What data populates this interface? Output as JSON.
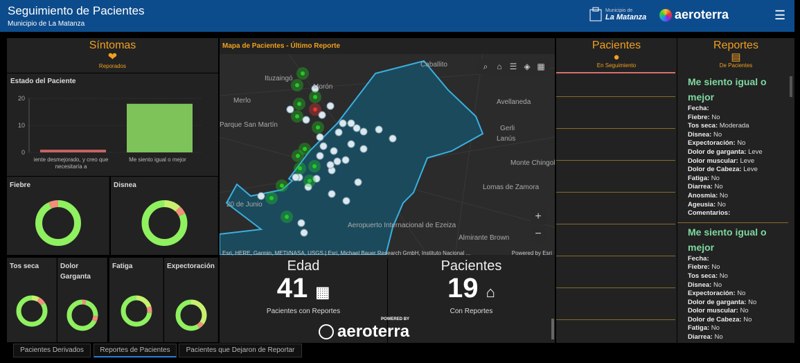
{
  "header": {
    "title": "Seguimiento de Pacientes",
    "subtitle": "Municipio de La Matanza",
    "municipio_small": "Municipio de",
    "municipio_name": "La Matanza",
    "brand": "aeroterra",
    "menu_icon": "hamburger-icon"
  },
  "sintomas": {
    "title": "Síntomas",
    "sub": "Reporados",
    "icon": "heart-alert-icon"
  },
  "estado": {
    "title": "Estado del Paciente"
  },
  "chart_data": {
    "type": "bar",
    "title": "Estado del Paciente",
    "categories": [
      "iente desmejorado, y creo que necesitaría a",
      "Me siento igual o mejor"
    ],
    "values": [
      1,
      18
    ],
    "colors": [
      "#c86464",
      "#7dc35a"
    ],
    "ylim": [
      0,
      20
    ],
    "yticks": [
      0,
      10,
      20
    ],
    "grid": true
  },
  "donuts": [
    {
      "label": "Fiebre",
      "segments": [
        {
          "v": 0.93,
          "c": "#8ff060"
        },
        {
          "v": 0.07,
          "c": "#f0907a"
        }
      ]
    },
    {
      "label": "Disnea",
      "segments": [
        {
          "v": 0.12,
          "c": "#c8f070"
        },
        {
          "v": 0.06,
          "c": "#f0907a"
        },
        {
          "v": 0.82,
          "c": "#8ff060"
        }
      ]
    },
    {
      "label": "Tos seca",
      "segments": [
        {
          "v": 0.08,
          "c": "#c8f070"
        },
        {
          "v": 0.08,
          "c": "#f0907a"
        },
        {
          "v": 0.84,
          "c": "#8ff060"
        }
      ]
    },
    {
      "label": "Dolor Garganta",
      "segments": [
        {
          "v": 0.04,
          "c": "#f0907a"
        },
        {
          "v": 0.22,
          "c": "#8ff060"
        },
        {
          "v": 0.06,
          "c": "#f0907a"
        },
        {
          "v": 0.68,
          "c": "#8ff060"
        }
      ]
    },
    {
      "label": "Fatiga",
      "segments": [
        {
          "v": 0.2,
          "c": "#c8f070"
        },
        {
          "v": 0.07,
          "c": "#f0907a"
        },
        {
          "v": 0.73,
          "c": "#8ff060"
        }
      ]
    },
    {
      "label": "Expectoración",
      "segments": [
        {
          "v": 0.35,
          "c": "#c8f070"
        },
        {
          "v": 0.06,
          "c": "#f0907a"
        },
        {
          "v": 0.59,
          "c": "#8ff060"
        }
      ]
    }
  ],
  "map": {
    "title": "Mapa de Pacientes - Último Reporte",
    "attribution": "Esri, HERE, Garmin, METI/NASA, USGS | Esri, Michael Bauer Research GmbH, Instituto Nacional ...",
    "powered": "Powered by Esri",
    "places": [
      {
        "n": "Caballito"
      },
      {
        "n": "Ituzaingó"
      },
      {
        "n": "Morón"
      },
      {
        "n": "Merlo"
      },
      {
        "n": "Avellaneda"
      },
      {
        "n": "Parque San Martín"
      },
      {
        "n": "Gerli"
      },
      {
        "n": "Lanús"
      },
      {
        "n": "Monte Chingolo"
      },
      {
        "n": "Lomas de Zamora"
      },
      {
        "n": "Almirante Brown"
      },
      {
        "n": "20 de Junio"
      },
      {
        "n": "Aeropuerto Internacional de Ezeiza"
      }
    ],
    "tools": [
      "search-icon",
      "home-icon",
      "list-icon",
      "layers-icon",
      "basemap-gallery-icon"
    ],
    "zoom_in": "+",
    "zoom_out": "−"
  },
  "edad": {
    "title": "Edad",
    "value": "41",
    "caption": "Pacientes con Reportes",
    "icon": "calendar-icon"
  },
  "pacientes_count": {
    "title": "Pacientes",
    "value": "19",
    "caption": "Con Reportes",
    "icon": "house-person-icon"
  },
  "powered": {
    "small": "POWERED BY",
    "brand": "aeroterra"
  },
  "pacientes": {
    "title": "Pacientes",
    "sub": "En Seguimiento",
    "icon": "person-icon"
  },
  "reportes": {
    "title": "Reportes",
    "sub": "De Pacientes",
    "icon": "clipboard-icon",
    "items": [
      {
        "heading": "Me siento igual o mejor",
        "fields": [
          [
            "Fecha",
            ""
          ],
          [
            "Fiebre",
            "No"
          ],
          [
            "Tos seca",
            "Moderada"
          ],
          [
            "Disnea",
            "No"
          ],
          [
            "Expectoración",
            "No"
          ],
          [
            "Dolor de garganta",
            "Leve"
          ],
          [
            "Dolor muscular",
            "Leve"
          ],
          [
            "Dolor de Cabeza",
            "Leve"
          ],
          [
            "Fatiga",
            "No"
          ],
          [
            "Diarrea",
            "No"
          ],
          [
            "Anosmia",
            "No"
          ],
          [
            "Ageusia",
            "No"
          ],
          [
            "Comentarios",
            ""
          ]
        ]
      },
      {
        "heading": "Me siento igual o mejor",
        "fields": [
          [
            "Fecha",
            ""
          ],
          [
            "Fiebre",
            "No"
          ],
          [
            "Tos seca",
            "No"
          ],
          [
            "Disnea",
            "No"
          ],
          [
            "Expectoración",
            "No"
          ],
          [
            "Dolor de garganta",
            "No"
          ],
          [
            "Dolor muscular",
            "No"
          ],
          [
            "Dolor de Cabeza",
            "No"
          ],
          [
            "Fatiga",
            "No"
          ],
          [
            "Diarrea",
            "No"
          ]
        ]
      }
    ]
  },
  "tabs": [
    {
      "label": "Pacientes Derivados"
    },
    {
      "label": "Reportes de Pacientes",
      "active": true
    },
    {
      "label": "Pacientes que Dejaron de Reportar"
    }
  ]
}
